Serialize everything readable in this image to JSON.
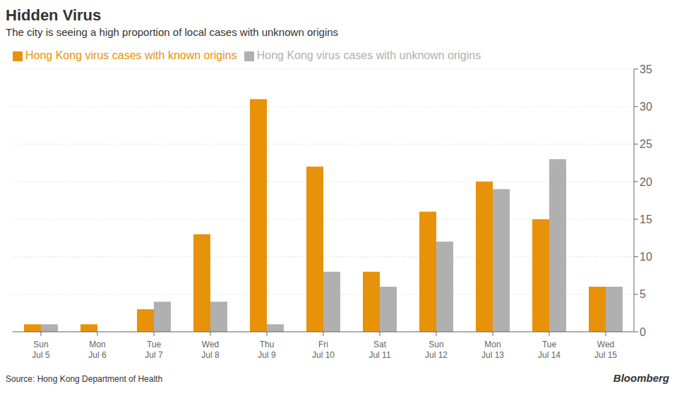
{
  "chart_data": {
    "type": "bar",
    "title": "Hidden Virus",
    "subtitle": "The city is seeing a high proportion of local cases with unknown origins",
    "annotations": [
      "Source: Hong Kong Department of Health",
      "Bloomberg"
    ],
    "categories": [
      "Sun\nJul 5",
      "Mon\nJul 6",
      "Tue\nJul 7",
      "Wed\nJul 8",
      "Thu\nJul 9",
      "Fri\nJul 10",
      "Sat\nJul 11",
      "Sun\nJul 12",
      "Mon\nJul 13",
      "Tue\nJul 14",
      "Wed\nJul 15"
    ],
    "series": [
      {
        "name": "Hong Kong virus cases with known origins",
        "color": "#E8920A",
        "values": [
          1,
          1,
          3,
          13,
          31,
          22,
          8,
          16,
          20,
          15,
          6
        ]
      },
      {
        "name": "Hong Kong virus cases with unknown origins",
        "color": "#B0B0B0",
        "values": [
          1,
          0,
          4,
          4,
          1,
          8,
          6,
          12,
          19,
          23,
          6
        ]
      }
    ],
    "ylim": [
      0,
      35
    ],
    "yticks": [
      0,
      5,
      10,
      15,
      20,
      25,
      30,
      35
    ],
    "grid": true,
    "legend": "upper left"
  }
}
